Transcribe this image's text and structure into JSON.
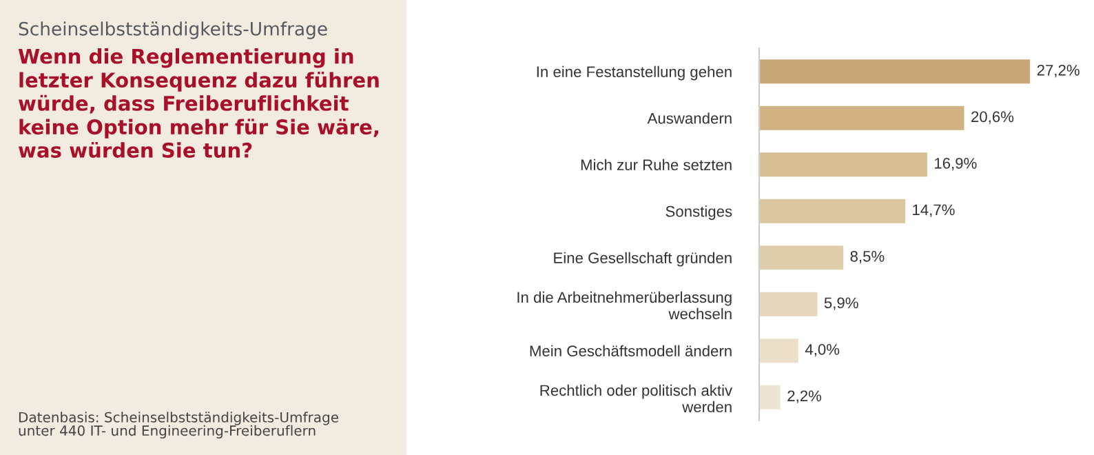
{
  "chart_data": {
    "type": "bar",
    "orientation": "horizontal",
    "subtitle": "Scheinselbstständigkeits-Umfrage",
    "title": "Wenn die Reglementierung in\nletzter Konsequenz dazu führen\nwürde, dass Freiberuflichkeit\nkeine Option mehr für Sie wäre,\nwas würden Sie tun?",
    "categories": [
      "In eine Festanstellung gehen",
      "Auswandern",
      "Mich zur Ruhe setzten",
      "Sonstiges",
      "Eine Gesellschaft gründen",
      "In die Arbeitnehmerüberlassung\nwechseln",
      "Mein Geschäftsmodell ändern",
      "Rechtlich oder politisch aktiv\nwerden"
    ],
    "values": [
      27.2,
      20.6,
      16.9,
      14.7,
      8.5,
      5.9,
      4.0,
      2.2
    ],
    "value_labels": [
      "27,2%",
      "20,6%",
      "16,9%",
      "14,7%",
      "8,5%",
      "5,9%",
      "4,0%",
      "2,2%"
    ],
    "colors": [
      "#c9a877",
      "#d0b283",
      "#d6bc93",
      "#dbc59f",
      "#e0cdab",
      "#e6d6bb",
      "#ebdfc9",
      "#efe5d5"
    ],
    "tick_labels": "y",
    "grid": false,
    "annotations": [
      "Datenbasis: Scheinselbstständigkeits-Umfrage\nunter 440 IT- und Engineering-Freiberuflern"
    ]
  }
}
